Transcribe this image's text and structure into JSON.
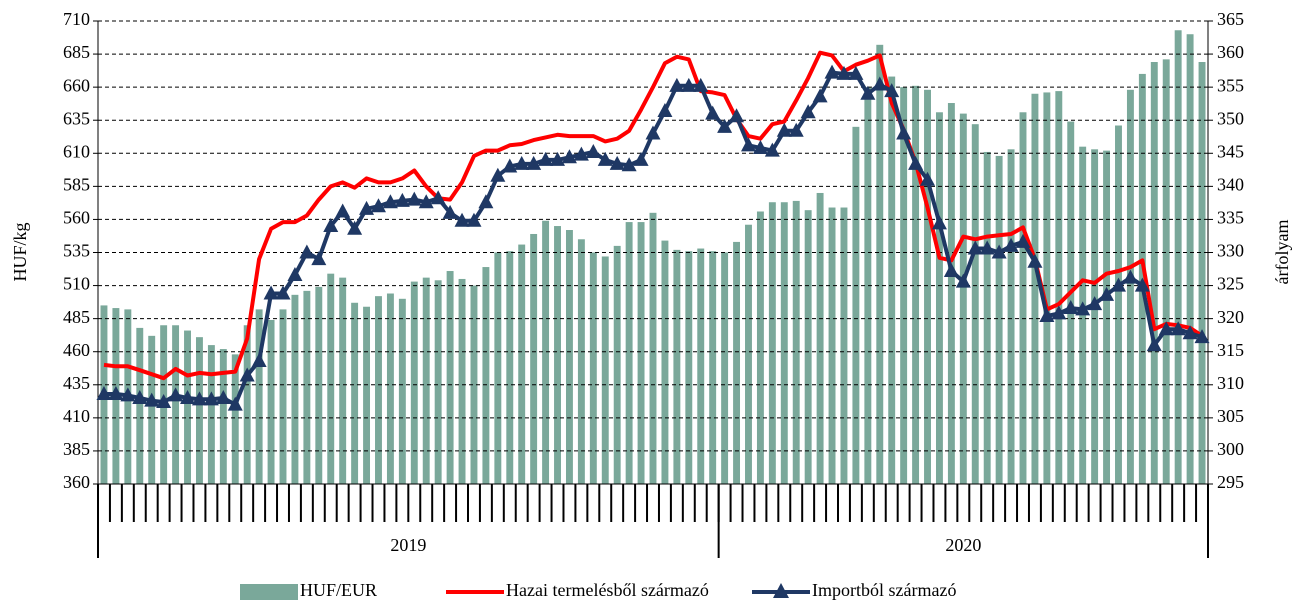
{
  "chart_data": {
    "type": "combo",
    "ylabel": "HUF/kg",
    "y2label": "árfolyam",
    "ylim": [
      360,
      710
    ],
    "yticks": [
      360,
      385,
      410,
      435,
      460,
      485,
      510,
      535,
      560,
      585,
      610,
      635,
      660,
      685,
      710
    ],
    "y2lim": [
      295,
      365
    ],
    "y2ticks": [
      295,
      300,
      305,
      310,
      315,
      320,
      325,
      330,
      335,
      340,
      345,
      350,
      355,
      360,
      365
    ],
    "grid": true,
    "legend": "bottom",
    "x_groups": [
      {
        "label": "2019",
        "size": 52
      },
      {
        "label": "2020",
        "size": 41
      }
    ],
    "categories": [
      null,
      null,
      null,
      null,
      null,
      null,
      null,
      null,
      null,
      null,
      null,
      null,
      null,
      null,
      null,
      null,
      null,
      null,
      null,
      null,
      null,
      null,
      null,
      null,
      null,
      null,
      null,
      null,
      null,
      null,
      null,
      null,
      null,
      null,
      null,
      null,
      null,
      null,
      null,
      null,
      null,
      null,
      null,
      null,
      null,
      null,
      null,
      null,
      null,
      null,
      null,
      null,
      null,
      null,
      null,
      null,
      null,
      null,
      null,
      null,
      null,
      null,
      null,
      null,
      null,
      null,
      null,
      null,
      null,
      null,
      null,
      null,
      null,
      null,
      null,
      null,
      null,
      null,
      null,
      null,
      null,
      null,
      null,
      null,
      null,
      null,
      null,
      null,
      null,
      null,
      null,
      null,
      null
    ],
    "series": [
      {
        "name": "HUF/EUR",
        "kind": "bar",
        "axis": "y2",
        "color": "#7aa89a",
        "values": [
          322.0,
          321.6,
          321.4,
          318.6,
          317.4,
          319.0,
          319.0,
          318.2,
          317.2,
          316.0,
          315.4,
          314.6,
          319.0,
          321.4,
          319.8,
          321.4,
          323.6,
          324.2,
          324.8,
          326.8,
          326.2,
          322.4,
          321.8,
          323.4,
          323.8,
          323.0,
          325.6,
          326.2,
          325.8,
          327.2,
          326.0,
          325.0,
          327.8,
          330.0,
          330.2,
          331.2,
          332.8,
          334.8,
          334.0,
          333.4,
          332.0,
          330.0,
          329.4,
          331.0,
          334.6,
          334.6,
          336.0,
          331.8,
          330.4,
          330.2,
          330.6,
          330.2,
          330.0,
          331.6,
          334.2,
          336.2,
          337.6,
          337.6,
          337.8,
          336.4,
          339.0,
          336.8,
          336.8,
          349.0,
          355.0,
          361.4,
          356.6,
          355.0,
          355.2,
          354.6,
          351.2,
          352.6,
          351.0,
          349.4,
          345.2,
          344.6,
          345.6,
          351.2,
          354.0,
          354.2,
          354.4,
          349.8,
          346.0,
          345.6,
          345.4,
          349.2,
          354.6,
          357.0,
          358.8,
          359.2,
          363.6,
          363.0,
          358.8
        ]
      },
      {
        "name": "Hazai termelésből származó",
        "kind": "line",
        "color": "#ff0000",
        "values": [
          450,
          449,
          449,
          446,
          443,
          440,
          447,
          442,
          444,
          443,
          444,
          445,
          470,
          530,
          553,
          558,
          558,
          563,
          575,
          585,
          588,
          584,
          591,
          588,
          588,
          591,
          597,
          585,
          576,
          575,
          588,
          608,
          612,
          612,
          616,
          617,
          620,
          622,
          624,
          623,
          623,
          623,
          619,
          621,
          627,
          643,
          660,
          678,
          683,
          681,
          657,
          656,
          654,
          636,
          623,
          621,
          632,
          634,
          650,
          667,
          686,
          684,
          672,
          677,
          680,
          684,
          648,
          628,
          603,
          569,
          531,
          529,
          547,
          545,
          547,
          548,
          549,
          554,
          530,
          492,
          496,
          505,
          514,
          512,
          519,
          521,
          524,
          529,
          477,
          481,
          480,
          478,
          472
        ]
      },
      {
        "name": "Importból származó",
        "kind": "line",
        "marker": "triangle",
        "color": "#1f3864",
        "values": [
          428,
          428,
          427,
          425,
          423,
          422,
          427,
          425,
          424,
          424,
          425,
          420,
          442,
          453,
          504,
          504,
          518,
          535,
          530,
          555,
          566,
          553,
          568,
          570,
          573,
          574,
          575,
          573,
          576,
          565,
          559,
          559,
          573,
          593,
          600,
          602,
          602,
          605,
          605,
          607,
          609,
          611,
          605,
          602,
          601,
          605,
          625,
          642,
          661,
          661,
          661,
          640,
          630,
          638,
          616,
          614,
          612,
          627,
          627,
          641,
          653,
          671,
          670,
          670,
          655,
          662,
          657,
          625,
          602,
          590,
          557,
          521,
          513,
          538,
          538,
          535,
          540,
          543,
          528,
          487,
          489,
          493,
          492,
          496,
          503,
          510,
          516,
          510,
          465,
          477,
          477,
          474,
          471
        ]
      }
    ]
  }
}
